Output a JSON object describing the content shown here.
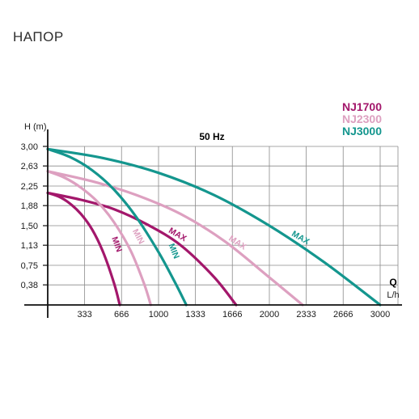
{
  "heading": "НАПОР",
  "chart_data": {
    "type": "line",
    "title": "50 Hz",
    "xlabel": "Q",
    "xunit": "L/h",
    "ylabel": "H (m)",
    "xlim": [
      0,
      3200
    ],
    "ylim": [
      0,
      3.0
    ],
    "x_ticks": [
      333,
      666,
      1000,
      1333,
      1666,
      2000,
      2333,
      2666,
      3000
    ],
    "x_tick_labels": [
      "333",
      "666",
      "1000",
      "1333",
      "1666",
      "2000",
      "2333",
      "2666",
      "3000"
    ],
    "y_ticks": [
      0.38,
      0.75,
      1.13,
      1.5,
      1.88,
      2.25,
      2.63,
      3.0
    ],
    "y_tick_labels": [
      "0,38",
      "0,75",
      "1,13",
      "1,50",
      "1,88",
      "2,25",
      "2,63",
      "3,00"
    ],
    "grid": true,
    "legend_position": "top-right",
    "colors": {
      "NJ1700": "#a3176b",
      "NJ2300": "#dda0c0",
      "NJ3000": "#14968e"
    },
    "series": [
      {
        "name": "NJ1700",
        "curve": "MAX",
        "x": [
          0,
          300,
          600,
          900,
          1200,
          1500,
          1700
        ],
        "y": [
          2.12,
          1.99,
          1.81,
          1.52,
          1.13,
          0.53,
          0
        ]
      },
      {
        "name": "NJ1700",
        "curve": "MIN",
        "x": [
          0,
          100,
          200,
          300,
          400,
          500,
          600,
          650
        ],
        "y": [
          2.12,
          2.05,
          1.92,
          1.72,
          1.43,
          1.0,
          0.4,
          0
        ]
      },
      {
        "name": "NJ2300",
        "curve": "MAX",
        "x": [
          0,
          400,
          800,
          1200,
          1600,
          2000,
          2300
        ],
        "y": [
          2.53,
          2.34,
          2.08,
          1.72,
          1.2,
          0.52,
          0
        ]
      },
      {
        "name": "NJ2300",
        "curve": "MIN",
        "x": [
          0,
          150,
          300,
          450,
          600,
          750,
          870,
          930
        ],
        "y": [
          2.53,
          2.41,
          2.22,
          1.95,
          1.56,
          1.02,
          0.4,
          0
        ]
      },
      {
        "name": "NJ3000",
        "curve": "MAX",
        "x": [
          0,
          500,
          1000,
          1500,
          2000,
          2500,
          3000
        ],
        "y": [
          2.95,
          2.78,
          2.5,
          2.08,
          1.5,
          0.8,
          0
        ]
      },
      {
        "name": "NJ3000",
        "curve": "MIN",
        "x": [
          0,
          200,
          400,
          600,
          800,
          1000,
          1150,
          1250
        ],
        "y": [
          2.95,
          2.8,
          2.55,
          2.18,
          1.66,
          1.0,
          0.42,
          0
        ]
      }
    ]
  }
}
